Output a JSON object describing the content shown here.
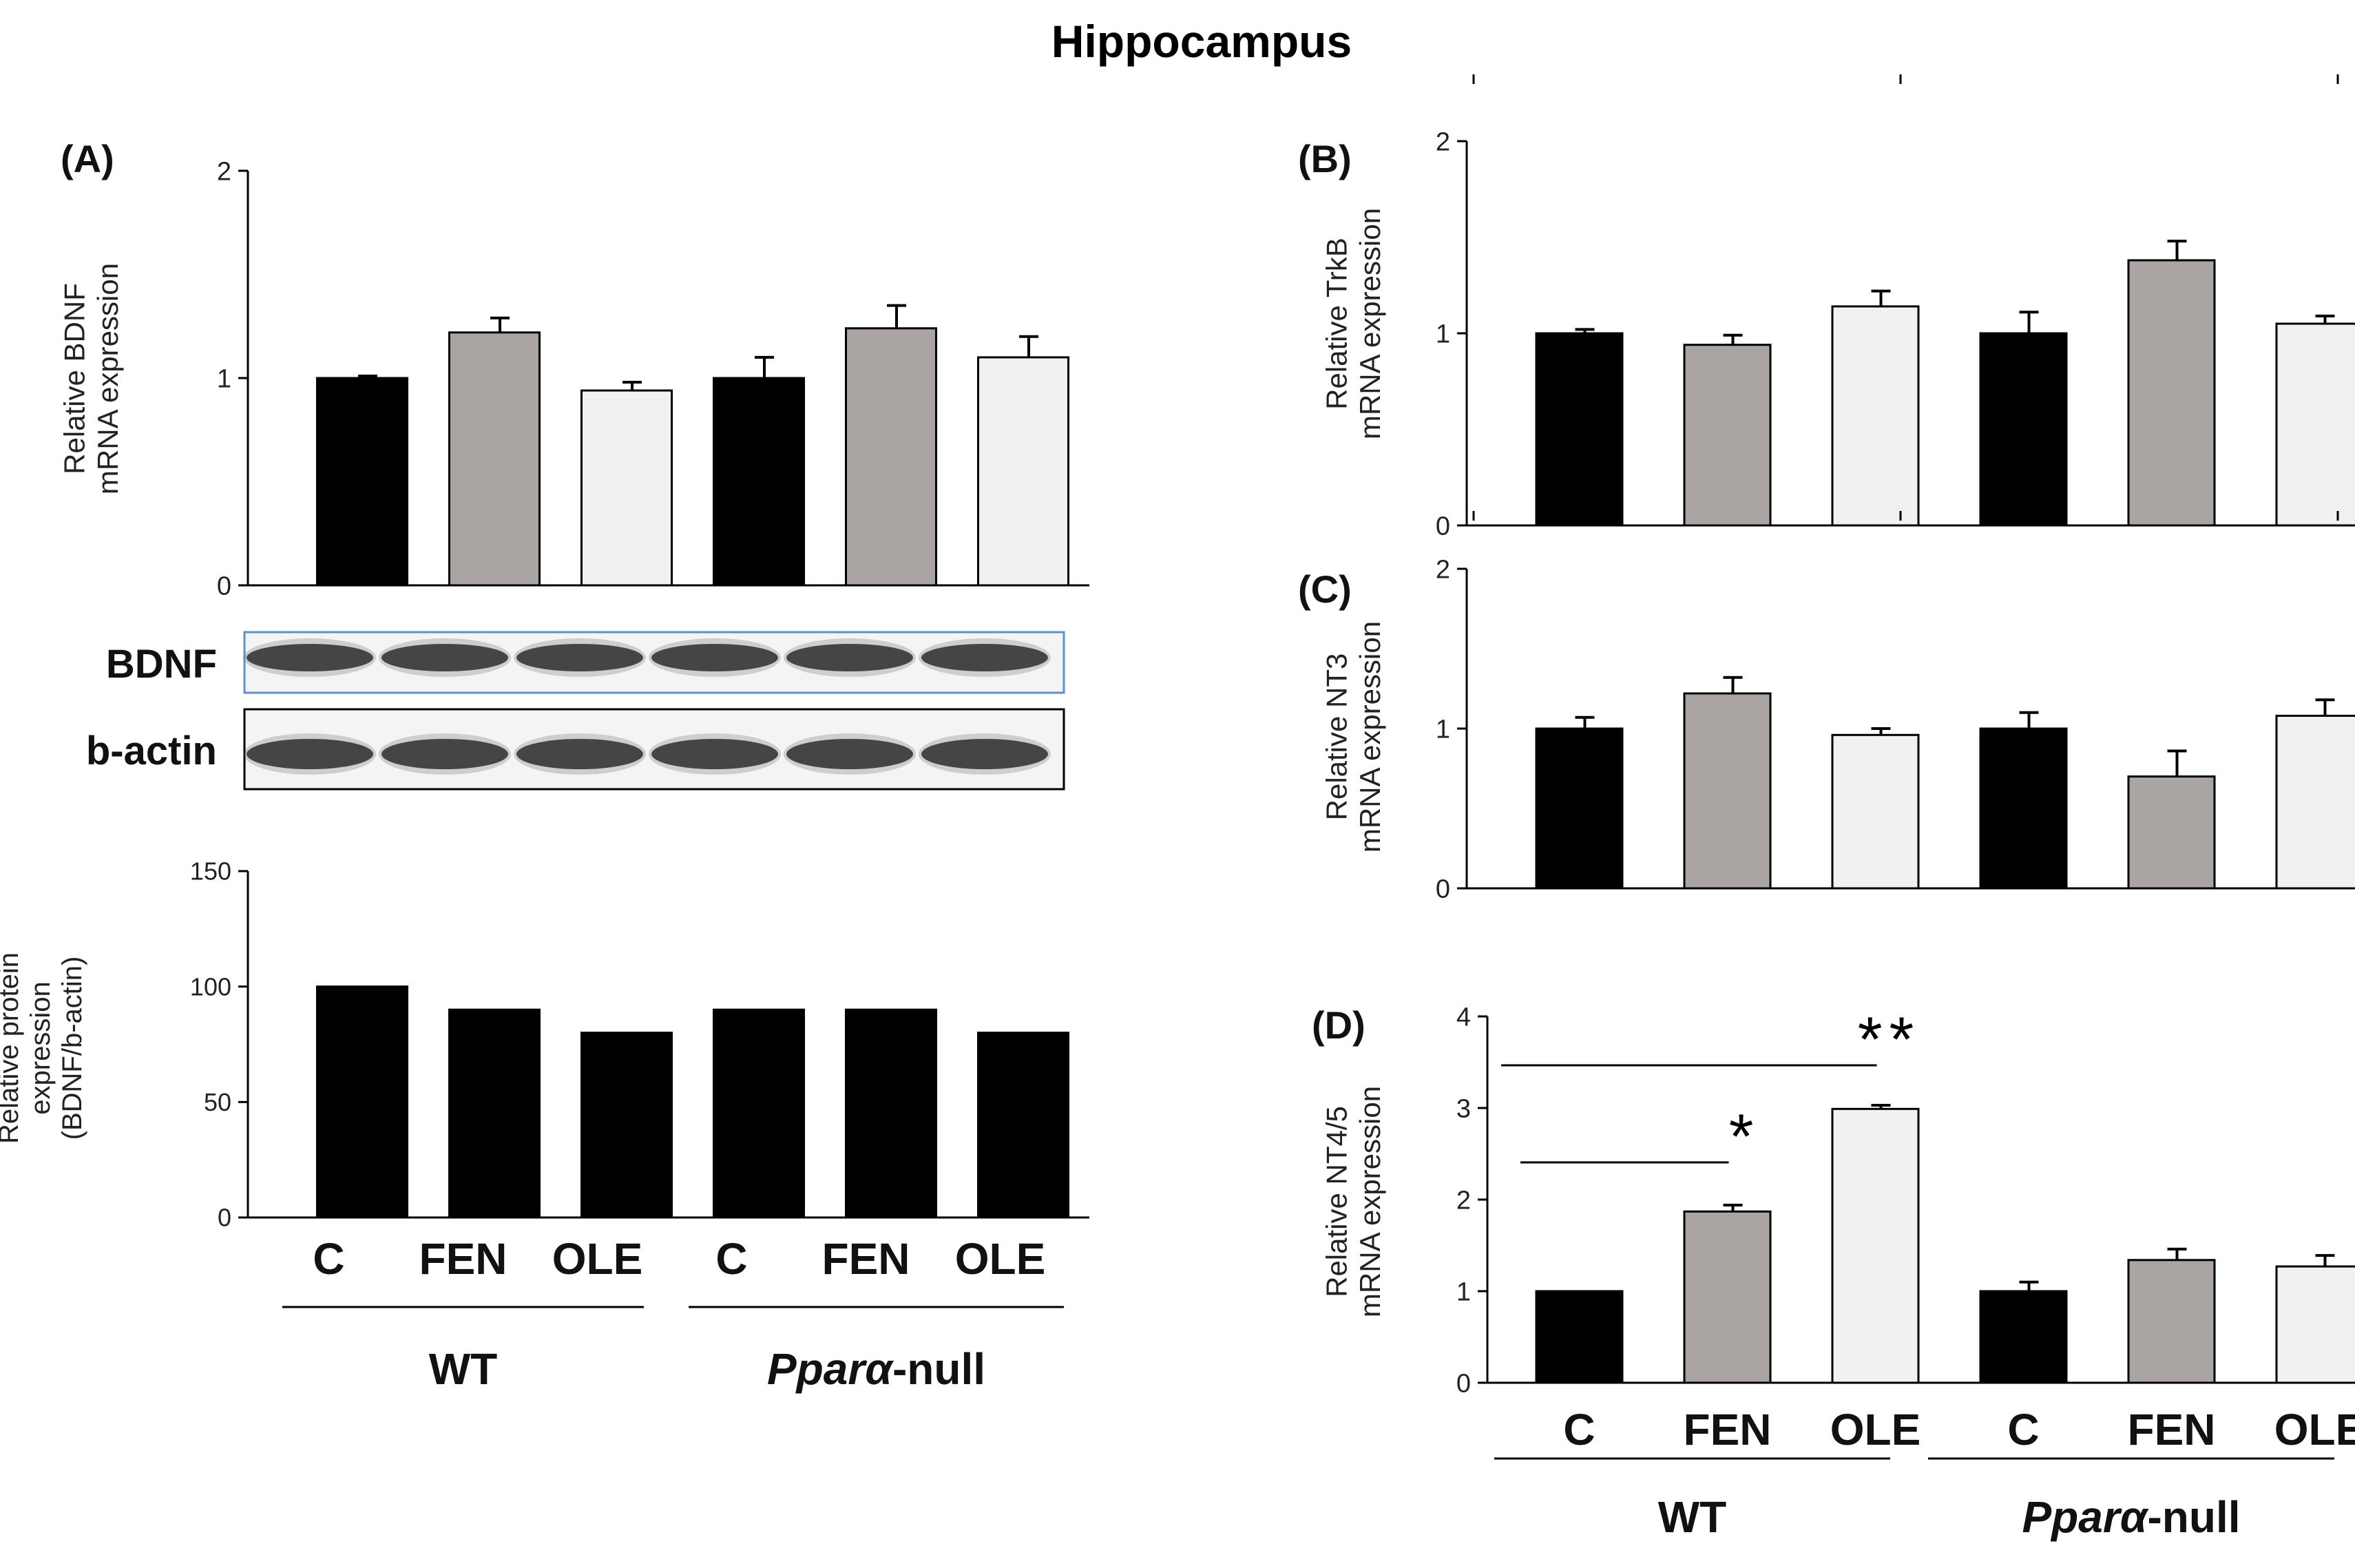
{
  "figure_title": "Hippocampus",
  "groups": [
    "WT",
    "Pparα-null"
  ],
  "group_italic_part": "Pparα",
  "group_suffix": "-null",
  "category_labels": [
    "C",
    "FEN",
    "OLE",
    "C",
    "FEN",
    "OLE"
  ],
  "bar_colors": [
    "#000000",
    "#aaa5a2",
    "#f1f1f1",
    "#000000",
    "#aaa5a2",
    "#f1f1f1"
  ],
  "blot": {
    "rows": [
      "BDNF",
      "b-actin"
    ],
    "lanes": 6
  },
  "chart_data": [
    {
      "id": "A",
      "panel_label": "(A)",
      "type": "bar",
      "ylabel": [
        "Relative  BDNF",
        "mRNA expression"
      ],
      "ylim": [
        0,
        2
      ],
      "yticks": [
        "0",
        "1",
        "2"
      ],
      "categories": [
        "C",
        "FEN",
        "OLE",
        "C",
        "FEN",
        "OLE"
      ],
      "values": [
        1.0,
        1.22,
        0.94,
        1.0,
        1.24,
        1.1
      ],
      "errors": [
        0.01,
        0.07,
        0.04,
        0.1,
        0.11,
        0.1
      ]
    },
    {
      "id": "A2",
      "panel_label": "",
      "type": "bar",
      "ylabel": [
        "Relative  protein",
        "expression",
        "(BDNF/b-actin)"
      ],
      "ylim": [
        0,
        150
      ],
      "yticks": [
        "0",
        "50",
        "100",
        "150"
      ],
      "categories": [
        "C",
        "FEN",
        "OLE",
        "C",
        "FEN",
        "OLE"
      ],
      "values": [
        100,
        90,
        80,
        90,
        90,
        80
      ]
    },
    {
      "id": "B",
      "panel_label": "(B)",
      "type": "bar",
      "ylabel": [
        "Relative  TrkB",
        "mRNA expression"
      ],
      "ylim": [
        0,
        2
      ],
      "yticks": [
        "0",
        "1",
        "2"
      ],
      "categories": [
        "C",
        "FEN",
        "OLE",
        "C",
        "FEN",
        "OLE"
      ],
      "values": [
        1.0,
        0.94,
        1.14,
        1.0,
        1.38,
        1.05
      ],
      "errors": [
        0.02,
        0.05,
        0.08,
        0.11,
        0.1,
        0.04
      ]
    },
    {
      "id": "C",
      "panel_label": "(C)",
      "type": "bar",
      "ylabel": [
        "Relative  NT3",
        "mRNA expression"
      ],
      "ylim": [
        0,
        2
      ],
      "yticks": [
        "0",
        "1",
        "2"
      ],
      "categories": [
        "C",
        "FEN",
        "OLE",
        "C",
        "FEN",
        "OLE"
      ],
      "values": [
        1.0,
        1.22,
        0.96,
        1.0,
        0.7,
        1.08
      ],
      "errors": [
        0.07,
        0.1,
        0.04,
        0.1,
        0.16,
        0.1
      ]
    },
    {
      "id": "D",
      "panel_label": "(D)",
      "type": "bar",
      "ylabel": [
        "Relative  NT4/5",
        "mRNA expression"
      ],
      "ylim": [
        0,
        4
      ],
      "yticks": [
        "0",
        "1",
        "2",
        "3",
        "4"
      ],
      "categories": [
        "C",
        "FEN",
        "OLE",
        "C",
        "FEN",
        "OLE"
      ],
      "values": [
        1.0,
        1.87,
        2.99,
        1.0,
        1.34,
        1.27
      ],
      "errors": [
        0.0,
        0.07,
        0.04,
        0.1,
        0.12,
        0.12
      ],
      "annotations": [
        {
          "from": "C",
          "to": "FEN",
          "text": "*"
        },
        {
          "from": "C",
          "to": "OLE",
          "text": "**"
        }
      ]
    }
  ]
}
